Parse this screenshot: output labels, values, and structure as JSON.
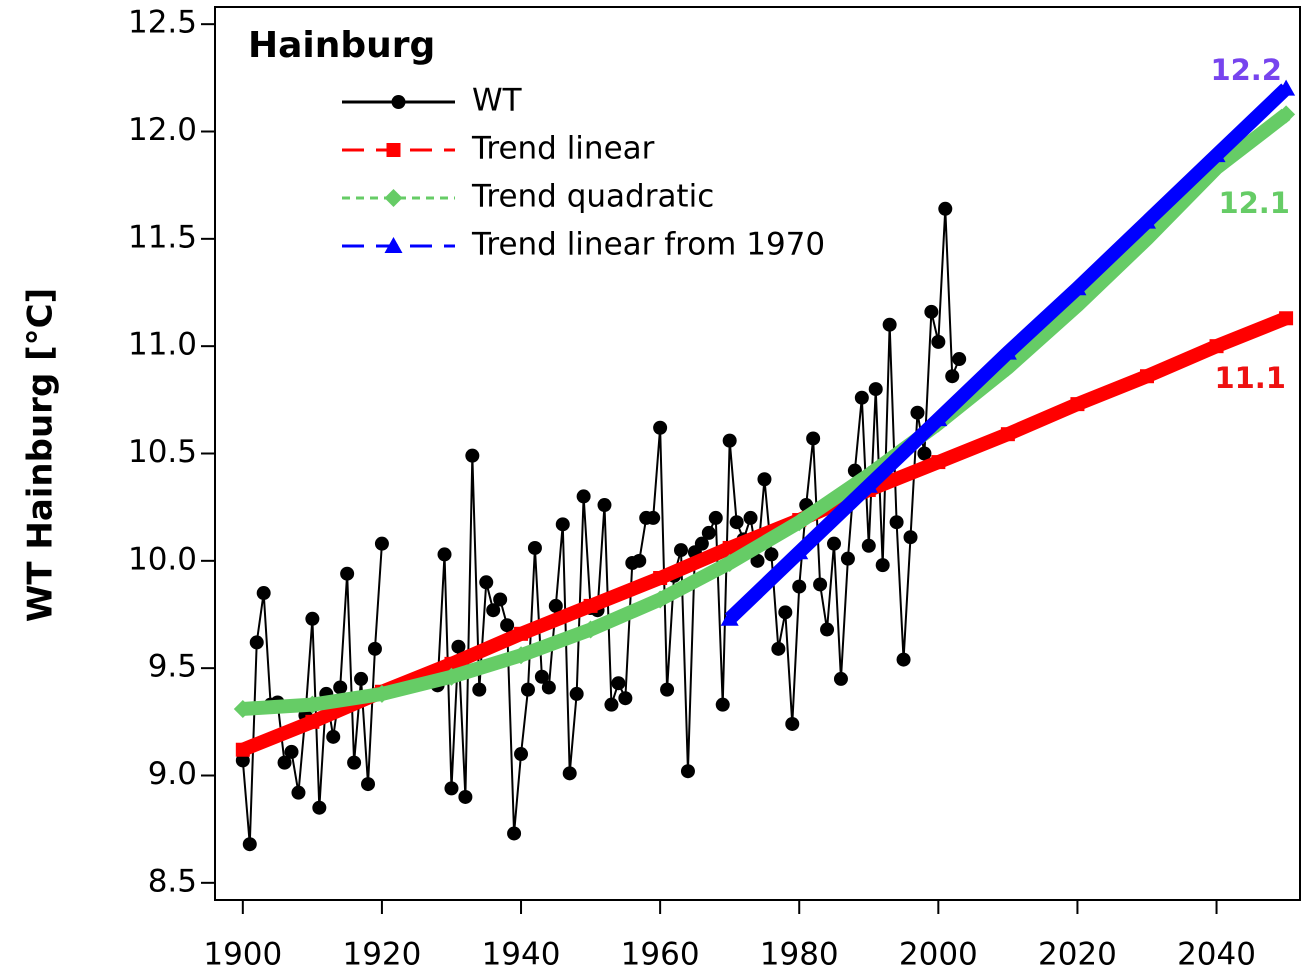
{
  "chart_data": {
    "type": "line",
    "title": "Hainburg",
    "y_label": "WT Hainburg [°C]",
    "xlim": [
      1896,
      2052
    ],
    "xticks": [
      1900,
      1920,
      1940,
      1960,
      1980,
      2000,
      2020,
      2040
    ],
    "ylim": [
      8.42,
      12.58
    ],
    "yticks": [
      8.5,
      {
        "value": 9,
        "label": "9.0"
      },
      9.5,
      {
        "value": 10,
        "label": "10.0"
      },
      10.5,
      {
        "value": 11,
        "label": "11.0"
      },
      11.5,
      {
        "value": 12,
        "label": "12.0"
      },
      12.5
    ],
    "series": [
      {
        "name": "WT",
        "color": "#000000",
        "marker": "circle",
        "x": [
          1900,
          1901,
          1902,
          1903,
          1904,
          1905,
          1906,
          1907,
          1908,
          1909,
          1910,
          1911,
          1912,
          1913,
          1914,
          1915,
          1916,
          1917,
          1918,
          1919,
          1920,
          1924,
          1928,
          1929,
          1930,
          1931,
          1932,
          1933,
          1934,
          1935,
          1936,
          1937,
          1938,
          1939,
          1940,
          1941,
          1942,
          1943,
          1944,
          1945,
          1946,
          1947,
          1948,
          1949,
          1950,
          1951,
          1952,
          1953,
          1954,
          1955,
          1956,
          1957,
          1958,
          1959,
          1960,
          1961,
          1962,
          1963,
          1964,
          1965,
          1966,
          1967,
          1968,
          1969,
          1970,
          1971,
          1972,
          1973,
          1974,
          1975,
          1976,
          1977,
          1978,
          1979,
          1980,
          1981,
          1982,
          1983,
          1984,
          1985,
          1986,
          1987,
          1988,
          1989,
          1990,
          1991,
          1992,
          1993,
          1994,
          1995,
          1996,
          1997,
          1998,
          1999,
          2000,
          2001,
          2002,
          2003
        ],
        "values": [
          9.07,
          8.68,
          9.62,
          9.85,
          9.33,
          9.34,
          9.06,
          9.11,
          8.92,
          9.28,
          9.73,
          8.85,
          9.38,
          9.18,
          9.41,
          9.94,
          9.06,
          9.45,
          8.96,
          9.59,
          10.08,
          null,
          9.42,
          10.03,
          8.94,
          9.6,
          8.9,
          10.49,
          9.4,
          9.9,
          9.77,
          9.82,
          9.7,
          8.73,
          9.1,
          9.4,
          10.06,
          9.46,
          9.41,
          9.79,
          10.17,
          9.01,
          9.38,
          10.3,
          9.78,
          9.77,
          10.26,
          9.33,
          9.43,
          9.36,
          9.99,
          10.0,
          10.2,
          10.2,
          10.62,
          9.4,
          9.93,
          10.05,
          9.02,
          10.04,
          10.08,
          10.13,
          10.2,
          9.33,
          10.56,
          10.18,
          10.1,
          10.2,
          10.0,
          10.38,
          10.03,
          9.59,
          9.76,
          9.24,
          9.88,
          10.26,
          10.57,
          9.89,
          9.68,
          10.08,
          9.45,
          10.01,
          10.42,
          10.76,
          10.07,
          10.8,
          9.98,
          11.1,
          10.18,
          9.54,
          10.11,
          10.69,
          10.5,
          11.16,
          11.02,
          11.64,
          10.86,
          10.94
        ]
      },
      {
        "name": "Trend linear",
        "color": "#ff0000",
        "marker": "square",
        "x": [
          1900,
          1910,
          1920,
          1930,
          1940,
          1950,
          1960,
          1970,
          1980,
          1990,
          2000,
          2010,
          2020,
          2030,
          2040,
          2050
        ],
        "values": [
          9.12,
          9.25,
          9.39,
          9.52,
          9.66,
          9.79,
          9.92,
          10.06,
          10.19,
          10.33,
          10.46,
          10.59,
          10.73,
          10.86,
          11.0,
          11.13
        ]
      },
      {
        "name": "Trend quadratic",
        "color": "#66cc66",
        "marker": "diamond",
        "x": [
          1900,
          1910,
          1920,
          1930,
          1940,
          1950,
          1960,
          1970,
          1980,
          1990,
          2000,
          2010,
          2020,
          2030,
          2040,
          2050
        ],
        "values": [
          9.31,
          9.33,
          9.38,
          9.46,
          9.56,
          9.68,
          9.82,
          9.99,
          10.18,
          10.4,
          10.64,
          10.9,
          11.19,
          11.5,
          11.83,
          12.08
        ]
      },
      {
        "name": "Trend linear from 1970",
        "color": "#0000ff",
        "marker": "triangle",
        "x": [
          1970,
          1980,
          1990,
          2000,
          2010,
          2020,
          2030,
          2040,
          2050
        ],
        "values": [
          9.73,
          10.04,
          10.35,
          10.66,
          10.97,
          11.27,
          11.58,
          11.89,
          12.2
        ]
      }
    ],
    "annotations": [
      {
        "text": "12.2",
        "color": "#7744ee"
      },
      {
        "text": "12.1",
        "color": "#66cc66"
      },
      {
        "text": "11.1",
        "color": "#ee1111"
      }
    ]
  }
}
